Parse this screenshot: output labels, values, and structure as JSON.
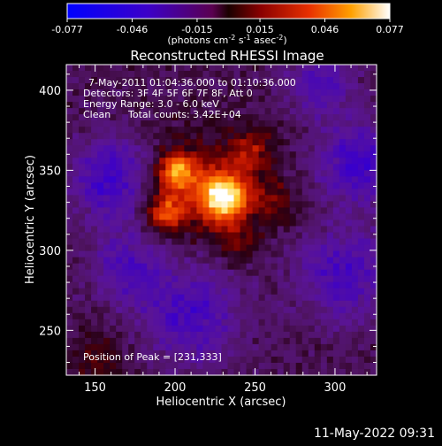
{
  "chart_data": {
    "type": "heatmap",
    "title": "Reconstructed RHESSI Image",
    "xlabel": "Heliocentric X (arcsec)",
    "ylabel": "Heliocentric Y (arcsec)",
    "xlim": [
      132,
      326
    ],
    "ylim": [
      222,
      416
    ],
    "xticks": [
      150,
      200,
      250,
      300
    ],
    "yticks": [
      250,
      300,
      350,
      400
    ],
    "colorbar": {
      "ticks": [
        "-0.077",
        "-0.046",
        "-0.015",
        "0.015",
        "0.046",
        "0.077"
      ],
      "range": [
        -0.077,
        0.077
      ],
      "unit_prefix": "(photons cm",
      "unit_exp1": "-2",
      "unit_mid": " s",
      "unit_exp2": "-1",
      "unit_mid2": " asec",
      "unit_exp3": "-2",
      "unit_suffix": ")"
    },
    "annotations": {
      "time_range": "7-May-2011 01:04:36.000 to 01:10:36.000",
      "detectors": "Detectors: 3F 4F 5F 6F 7F 8F, Att 0",
      "energy_range": "Energy Range: 3.0 - 6.0 keV",
      "method": "Clean",
      "total_counts": "Total counts: 3.42E+04",
      "peak_position": "Position of Peak = [231,333]"
    },
    "peak": {
      "x": 231,
      "y": 333,
      "value": 0.077
    },
    "sources": [
      {
        "x": 231,
        "y": 333,
        "amplitude": 0.077,
        "sigma": 10
      },
      {
        "x": 201,
        "y": 349,
        "amplitude": 0.055,
        "sigma": 7
      },
      {
        "x": 194,
        "y": 324,
        "amplitude": 0.04,
        "sigma": 8
      },
      {
        "x": 213,
        "y": 340,
        "amplitude": 0.03,
        "sigma": 22
      },
      {
        "x": 248,
        "y": 362,
        "amplitude": 0.028,
        "sigma": 10
      },
      {
        "x": 262,
        "y": 330,
        "amplitude": 0.022,
        "sigma": 10
      },
      {
        "x": 240,
        "y": 305,
        "amplitude": 0.02,
        "sigma": 9
      },
      {
        "x": 152,
        "y": 232,
        "amplitude": 0.018,
        "sigma": 12
      }
    ],
    "background_negative": [
      {
        "x": 160,
        "y": 345,
        "amplitude": -0.04,
        "sigma": 18
      },
      {
        "x": 315,
        "y": 355,
        "amplitude": -0.04,
        "sigma": 18
      },
      {
        "x": 210,
        "y": 260,
        "amplitude": -0.035,
        "sigma": 22
      },
      {
        "x": 305,
        "y": 285,
        "amplitude": -0.035,
        "sigma": 20
      },
      {
        "x": 170,
        "y": 290,
        "amplitude": -0.03,
        "sigma": 16
      },
      {
        "x": 290,
        "y": 405,
        "amplitude": -0.03,
        "sigma": 15
      }
    ]
  },
  "footer": {
    "date": "11-May-2022 09:31"
  }
}
